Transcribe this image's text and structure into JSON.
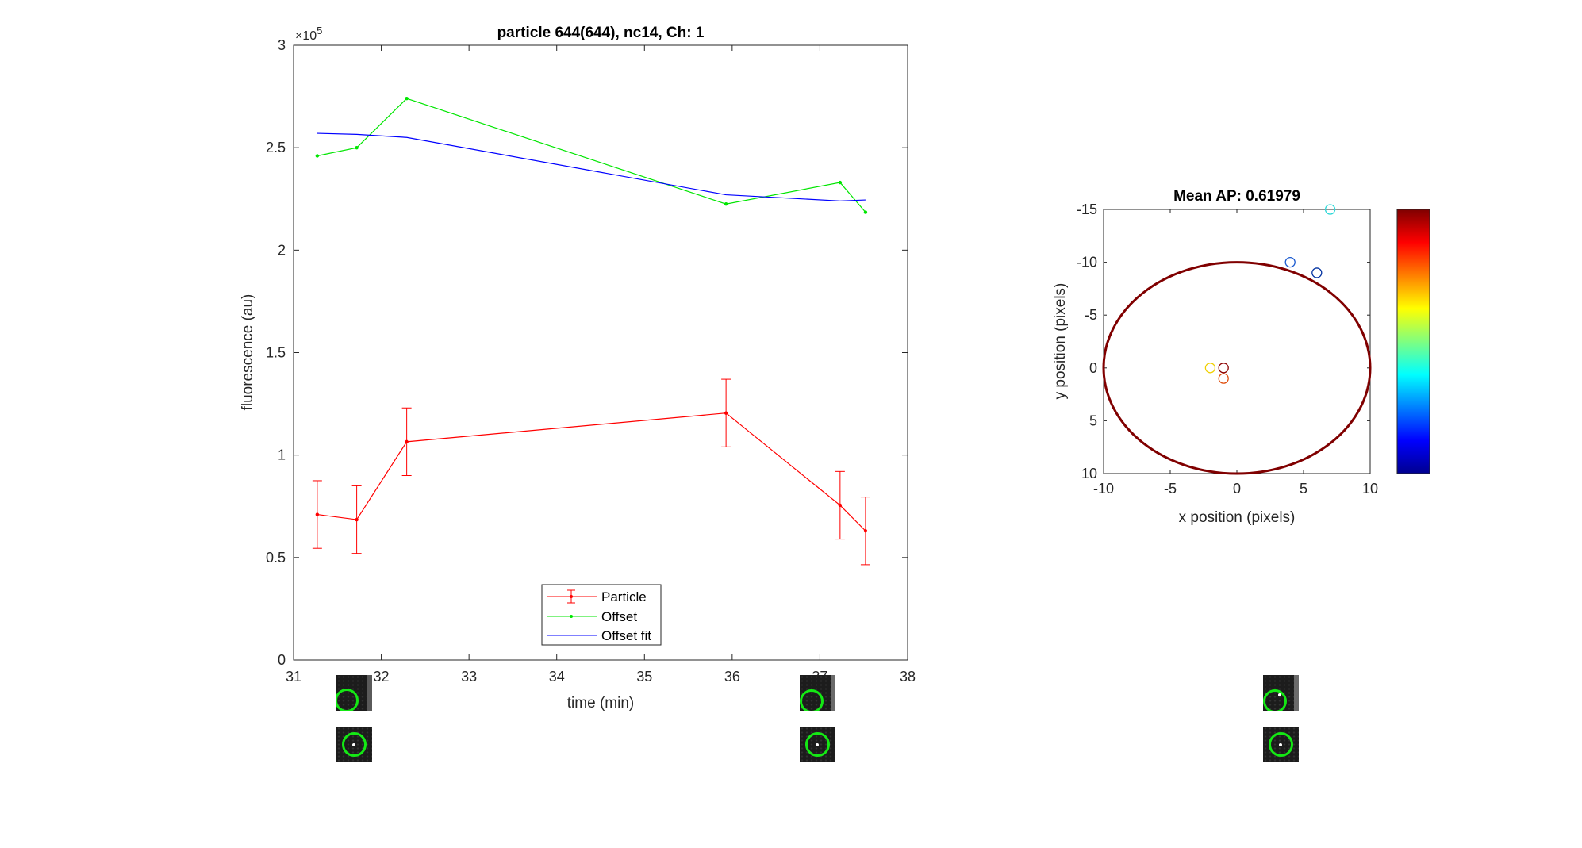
{
  "figure": {
    "left_title": "particle 644(644), nc14, Ch: 1",
    "right_title": "Mean AP: 0.61979"
  },
  "chart_data": [
    {
      "type": "line",
      "title": "particle 644(644), nc14, Ch: 1",
      "xlabel": "time (min)",
      "ylabel": "fluorescence (au)",
      "xlim": [
        31,
        38
      ],
      "ylim": [
        0,
        300000
      ],
      "x_ticks": [
        "31",
        "32",
        "33",
        "34",
        "35",
        "36",
        "37",
        "38"
      ],
      "y_ticks": [
        "0",
        "0.5",
        "1",
        "1.5",
        "2",
        "2.5",
        "3"
      ],
      "y_exponent_label": "×10",
      "y_exponent": "5",
      "grid": false,
      "legend_position": "bottom-center",
      "series": [
        {
          "name": "Particle",
          "color": "#ff0000",
          "marker": "dot",
          "error_bars": true,
          "x": [
            31.27,
            31.72,
            32.29,
            35.93,
            37.23,
            37.52
          ],
          "y": [
            71000,
            68500,
            106500,
            120500,
            75500,
            63000
          ],
          "err": [
            16500,
            16500,
            16500,
            16500,
            16500,
            16500
          ]
        },
        {
          "name": "Offset",
          "color": "#00e600",
          "marker": "dot",
          "error_bars": false,
          "x": [
            31.27,
            31.72,
            32.29,
            35.93,
            37.23,
            37.52
          ],
          "y": [
            246000,
            250000,
            274000,
            222500,
            233000,
            218500
          ]
        },
        {
          "name": "Offset fit",
          "color": "#0000ff",
          "marker": "none",
          "error_bars": false,
          "x": [
            31.27,
            31.72,
            32.29,
            35.93,
            37.23,
            37.52
          ],
          "y": [
            257000,
            256500,
            255000,
            227000,
            224000,
            224500
          ]
        }
      ]
    },
    {
      "type": "scatter",
      "title": "Mean AP: 0.61979",
      "xlabel": "x position (pixels)",
      "ylabel": "y position (pixels)",
      "xlim": [
        -10,
        10
      ],
      "ylim": [
        -15,
        10
      ],
      "y_reversed": true,
      "x_ticks": [
        "-10",
        "-5",
        "0",
        "5",
        "10"
      ],
      "y_ticks": [
        "-15",
        "-10",
        "-5",
        "0",
        "5",
        "10"
      ],
      "ellipse": {
        "cx": 0,
        "cy": 0,
        "rx": 10,
        "ry": 10,
        "color": "#800000"
      },
      "colormap": "jet",
      "colorbar": true,
      "points": [
        {
          "x": -2,
          "y": 0,
          "color": "#f0d000"
        },
        {
          "x": -1,
          "y": 0,
          "color": "#8b0000"
        },
        {
          "x": -1,
          "y": 1,
          "color": "#e05010"
        },
        {
          "x": 4,
          "y": -10,
          "color": "#1a5ad0"
        },
        {
          "x": 6,
          "y": -9,
          "color": "#0030a0"
        },
        {
          "x": 7,
          "y": -15,
          "color": "#30d8d8"
        }
      ]
    }
  ],
  "thumbnails": [
    {
      "group": "left",
      "row": "top"
    },
    {
      "group": "left",
      "row": "bottom"
    },
    {
      "group": "middle",
      "row": "top"
    },
    {
      "group": "middle",
      "row": "bottom"
    },
    {
      "group": "right",
      "row": "top"
    },
    {
      "group": "right",
      "row": "bottom"
    }
  ]
}
